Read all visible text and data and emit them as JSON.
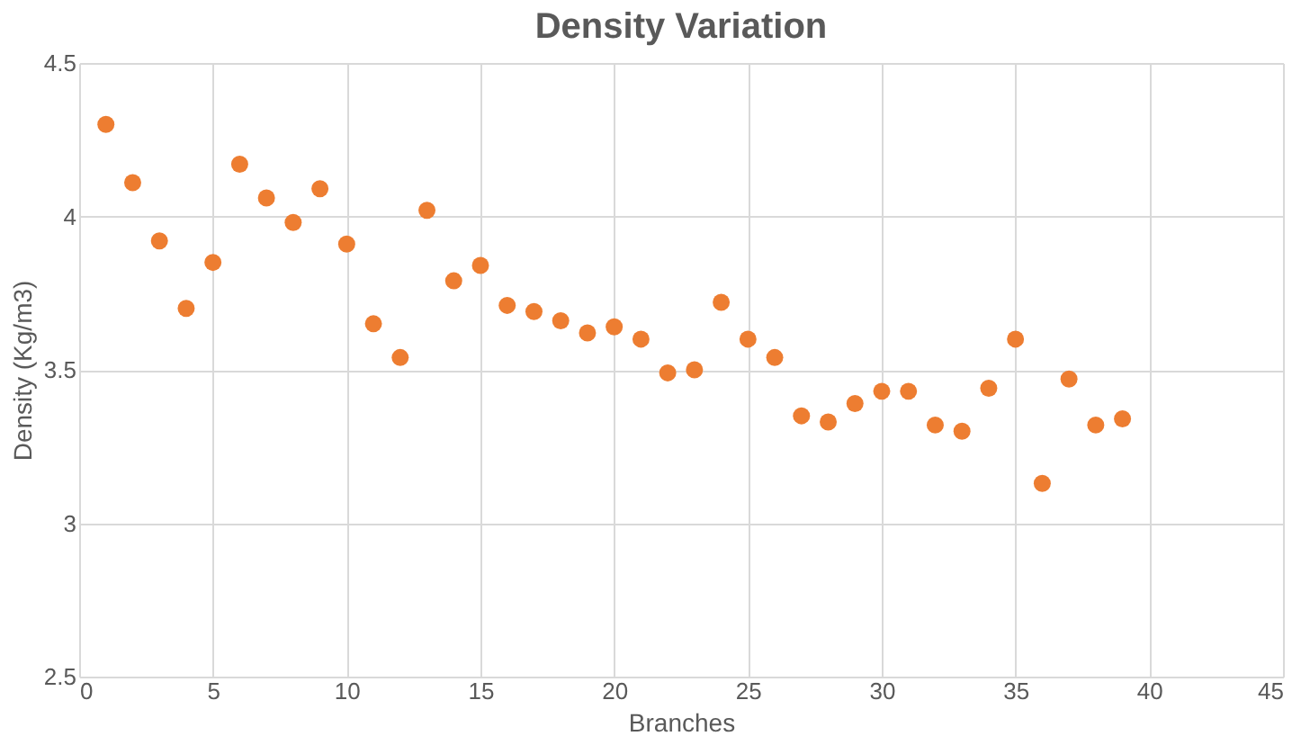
{
  "chart_data": {
    "type": "scatter",
    "title": "Density Variation",
    "xlabel": "Branches",
    "ylabel": "Density (Kg/m3)",
    "x": [
      1,
      2,
      3,
      4,
      5,
      6,
      7,
      8,
      9,
      10,
      11,
      12,
      13,
      14,
      15,
      16,
      17,
      18,
      19,
      20,
      21,
      22,
      23,
      24,
      25,
      26,
      27,
      28,
      29,
      30,
      31,
      32,
      33,
      34,
      35,
      36,
      37,
      38,
      39
    ],
    "series": [
      {
        "color": "#ed7d31",
        "values": [
          4.3,
          4.11,
          3.92,
          3.7,
          3.85,
          4.17,
          4.06,
          3.98,
          4.09,
          3.91,
          3.65,
          3.54,
          4.02,
          3.79,
          3.84,
          3.71,
          3.69,
          3.66,
          3.62,
          3.64,
          3.6,
          3.49,
          3.5,
          3.72,
          3.6,
          3.54,
          3.35,
          3.33,
          3.39,
          3.43,
          3.43,
          3.32,
          3.3,
          3.44,
          3.6,
          3.13,
          3.47,
          3.32,
          3.34
        ]
      }
    ],
    "xlim": [
      0,
      45
    ],
    "xticks": [
      0,
      5,
      10,
      15,
      20,
      25,
      30,
      35,
      40,
      45
    ],
    "ylim": [
      2.5,
      4.5
    ],
    "yticks": [
      2.5,
      3,
      3.5,
      4,
      4.5
    ],
    "grid": true,
    "marker": "circle"
  }
}
